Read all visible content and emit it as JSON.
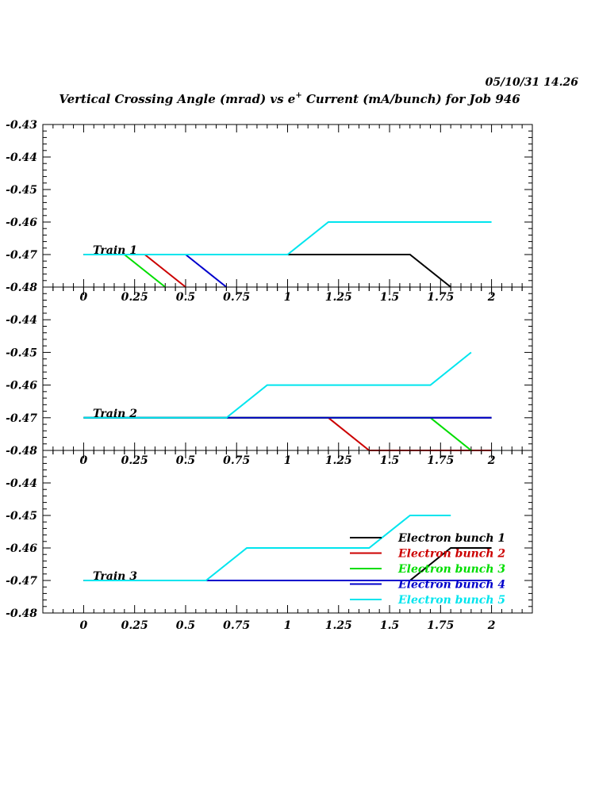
{
  "header": {
    "timestamp": "05/10/31   14.26",
    "title_main": "Vertical Crossing Angle (mrad) vs e",
    "title_sup": "+",
    "title_rest": " Current (mA/bunch) for Job 946"
  },
  "chart_data": {
    "type": "line",
    "x_ticks": [
      "0",
      "0.25",
      "0.5",
      "0.75",
      "1",
      "1.25",
      "1.5",
      "1.75",
      "2"
    ],
    "xlim": [
      -0.2,
      2.2
    ],
    "legend": {
      "placement": "bottom-right of lowest panel",
      "entries": [
        {
          "name": "Electron bunch 1",
          "color": "#000000"
        },
        {
          "name": "Electron bunch 2",
          "color": "#cc0000"
        },
        {
          "name": "Electron bunch 3",
          "color": "#00dd00"
        },
        {
          "name": "Electron bunch 4",
          "color": "#0000cc"
        },
        {
          "name": "Electron bunch 5",
          "color": "#00e5ee"
        }
      ]
    },
    "panels": [
      {
        "label": "Train 1",
        "ylim": [
          -0.48,
          -0.43
        ],
        "y_ticks": [
          "-0.43",
          "-0.44",
          "-0.45",
          "-0.46",
          "-0.47",
          "-0.48"
        ],
        "series": [
          {
            "name": "Electron bunch 1",
            "x": [
              0,
              1.6,
              1.8
            ],
            "y": [
              -0.47,
              -0.47,
              -0.48
            ]
          },
          {
            "name": "Electron bunch 2",
            "x": [
              0,
              0.3,
              0.5
            ],
            "y": [
              -0.47,
              -0.47,
              -0.48
            ]
          },
          {
            "name": "Electron bunch 3",
            "x": [
              0,
              0.2,
              0.4
            ],
            "y": [
              -0.47,
              -0.47,
              -0.48
            ]
          },
          {
            "name": "Electron bunch 4",
            "x": [
              0,
              0.5,
              0.7
            ],
            "y": [
              -0.47,
              -0.47,
              -0.48
            ]
          },
          {
            "name": "Electron bunch 5",
            "x": [
              0,
              1.0,
              1.2,
              2.0
            ],
            "y": [
              -0.47,
              -0.47,
              -0.46,
              -0.46
            ]
          }
        ]
      },
      {
        "label": "Train 2",
        "ylim": [
          -0.48,
          -0.43
        ],
        "y_ticks": [
          "-0.44",
          "-0.45",
          "-0.46",
          "-0.47",
          "-0.48"
        ],
        "series": [
          {
            "name": "Electron bunch 1",
            "x": [
              0,
              2.0
            ],
            "y": [
              -0.47,
              -0.47
            ]
          },
          {
            "name": "Electron bunch 2",
            "x": [
              0,
              1.2,
              1.4,
              2.0
            ],
            "y": [
              -0.47,
              -0.47,
              -0.48,
              -0.48
            ]
          },
          {
            "name": "Electron bunch 3",
            "x": [
              0,
              1.7,
              1.9
            ],
            "y": [
              -0.47,
              -0.47,
              -0.48
            ]
          },
          {
            "name": "Electron bunch 4",
            "x": [
              0,
              2.0
            ],
            "y": [
              -0.47,
              -0.47
            ]
          },
          {
            "name": "Electron bunch 5",
            "x": [
              0,
              0.7,
              0.9,
              1.7,
              1.9
            ],
            "y": [
              -0.47,
              -0.47,
              -0.46,
              -0.46,
              -0.45
            ]
          }
        ]
      },
      {
        "label": "Train 3",
        "ylim": [
          -0.48,
          -0.43
        ],
        "y_ticks": [
          "-0.44",
          "-0.45",
          "-0.46",
          "-0.47",
          "-0.48"
        ],
        "series": [
          {
            "name": "Electron bunch 1",
            "x": [
              0,
              1.6,
              1.8,
              2.0
            ],
            "y": [
              -0.47,
              -0.47,
              -0.46,
              -0.46
            ]
          },
          {
            "name": "Electron bunch 2",
            "x": [
              0,
              2.0
            ],
            "y": [
              -0.47,
              -0.47
            ]
          },
          {
            "name": "Electron bunch 3",
            "x": [
              0,
              2.0
            ],
            "y": [
              -0.47,
              -0.47
            ]
          },
          {
            "name": "Electron bunch 4",
            "x": [
              0,
              2.0
            ],
            "y": [
              -0.47,
              -0.47
            ]
          },
          {
            "name": "Electron bunch 5",
            "x": [
              0,
              0.6,
              0.8,
              1.4,
              1.6,
              1.8
            ],
            "y": [
              -0.47,
              -0.47,
              -0.46,
              -0.46,
              -0.45,
              -0.45
            ]
          }
        ]
      }
    ]
  }
}
